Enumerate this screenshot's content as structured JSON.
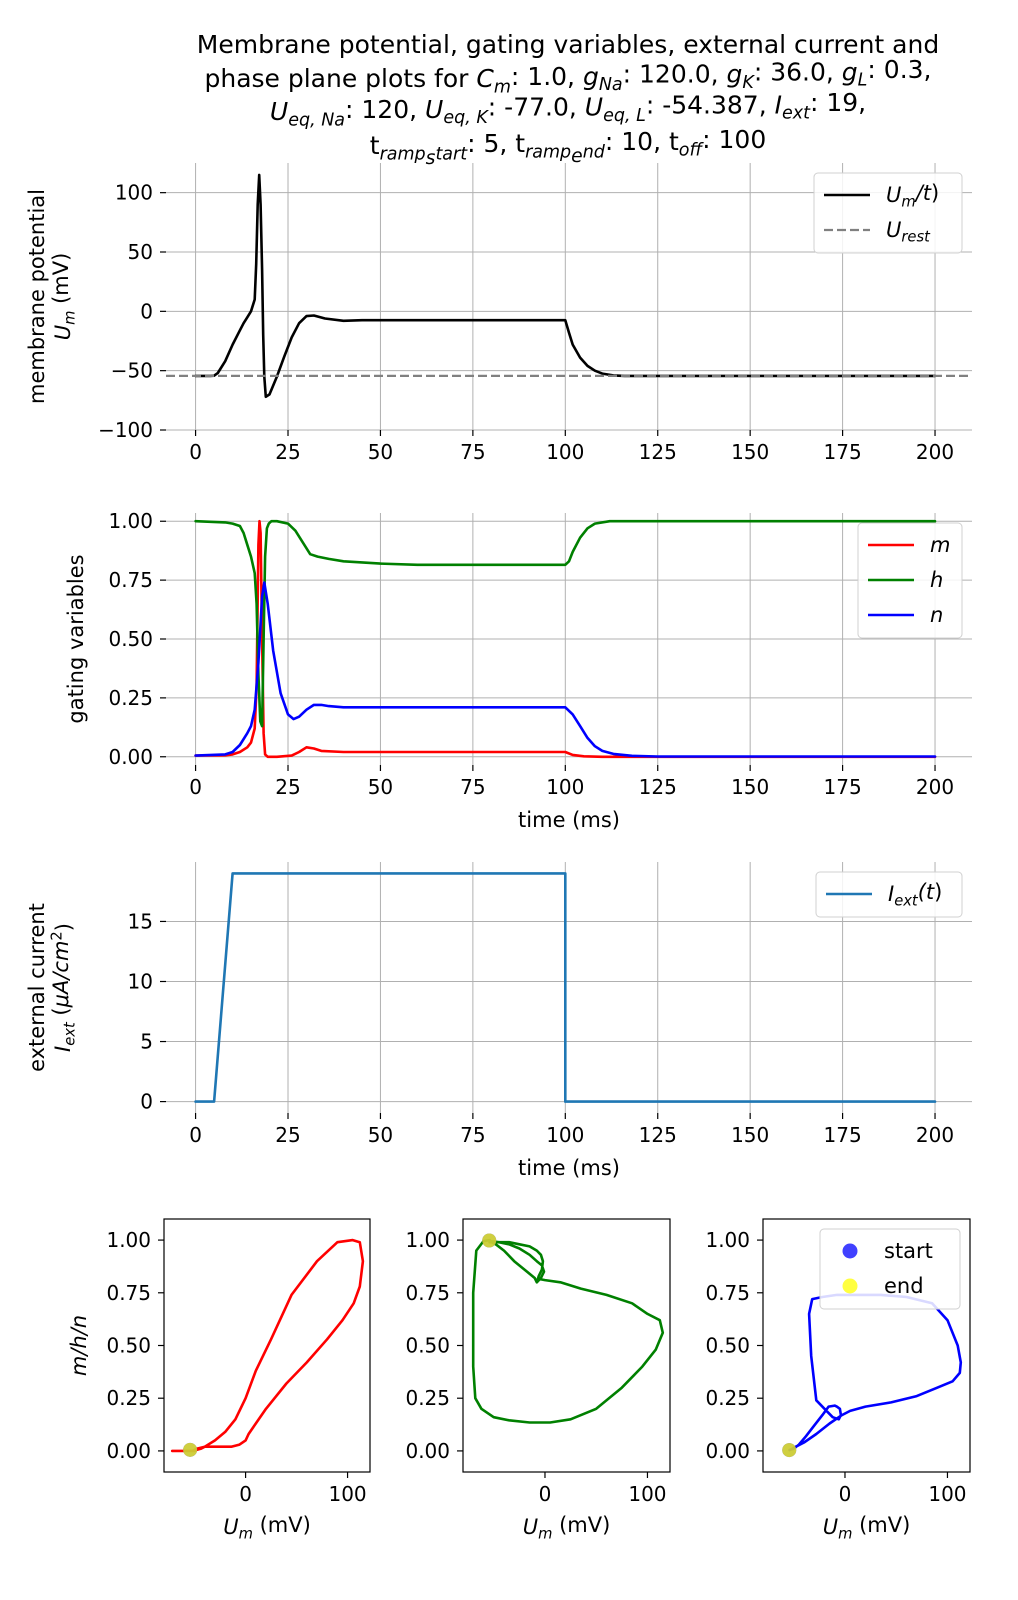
{
  "title_lines": [
    [
      "Membrane potential, gating variables, external current and"
    ],
    [
      "phase plane plots for ",
      {
        "i": "C",
        "sub": "m"
      },
      ": 1.0, ",
      {
        "i": "g",
        "sub": "Na"
      },
      ": 120.0, ",
      {
        "i": "g",
        "sub": "K"
      },
      ": 36.0, ",
      {
        "i": "g",
        "sub": "L"
      },
      ": 0.3,"
    ],
    [
      {
        "i": "U",
        "sub": "eq, Na"
      },
      ": 120, ",
      {
        "i": "U",
        "sub": "eq, K"
      },
      ": -77.0, ",
      {
        "i": "U",
        "sub": "eq, L"
      },
      ": -54.387, ",
      {
        "i": "I",
        "sub": "ext"
      },
      ": 19,"
    ],
    [
      {
        "t": "t",
        "sub": "ramp",
        "subsub": "s",
        "subtail": "tart"
      },
      ": 5, ",
      {
        "t": "t",
        "sub": "ramp",
        "subsub": "e",
        "subtail": "nd"
      },
      ": 10, t",
      {
        "i": "",
        "sub": "off"
      },
      ": 100"
    ]
  ],
  "colors": {
    "membrane": "#000000",
    "rest": "#808080",
    "m": "#ff0000",
    "h": "#008000",
    "n": "#0000ff",
    "current": "#1f77b4",
    "start": "#0000ff",
    "end": "#ffff00",
    "grid": "#b0b0b0"
  },
  "chart_data": [
    {
      "type": "line",
      "id": "membrane",
      "xlabel": "",
      "ylabel_lines": [
        "membrane potential",
        [
          {
            "i": "U",
            "sub": "m"
          },
          " (mV)"
        ]
      ],
      "xlim": [
        -8,
        210
      ],
      "ylim": [
        -100,
        125
      ],
      "xticks": [
        0,
        25,
        50,
        75,
        100,
        125,
        150,
        175,
        200
      ],
      "yticks": [
        -100,
        -50,
        0,
        50,
        100
      ],
      "ytick_labels": [
        "−100",
        "−50",
        "0",
        "50",
        "100"
      ],
      "grid": true,
      "legend": {
        "placement": "top-right",
        "entries": [
          {
            "label": [
              {
                "i": "U",
                "sub": "m"
              },
              {
                "i": "/t"
              },
              ")"
            ],
            "label_text": "U_m/t)",
            "style": "solid",
            "color": "#000000"
          },
          {
            "label": [
              {
                "i": "U",
                "sub": "rest"
              }
            ],
            "label_text": "U_rest",
            "style": "dashed",
            "color": "#808080"
          }
        ]
      },
      "series": [
        {
          "name": "U_m/t)",
          "color": "#000000",
          "style": "solid",
          "x": [
            0,
            4,
            5,
            6,
            8,
            10,
            12,
            13,
            14,
            15,
            16,
            16.4,
            16.8,
            17.2,
            17.6,
            18,
            18.3,
            18.6,
            19,
            20,
            22,
            24,
            26,
            28,
            30,
            32,
            35,
            40,
            45,
            50,
            60,
            70,
            80,
            90,
            99,
            100,
            101,
            102,
            104,
            106,
            108,
            110,
            113,
            116,
            120,
            130,
            140,
            150,
            160,
            170,
            180,
            190,
            200
          ],
          "y": [
            -54.4,
            -54.4,
            -54.2,
            -52,
            -42,
            -28,
            -16,
            -10,
            -5,
            0,
            10,
            40,
            90,
            115,
            90,
            35,
            -20,
            -55,
            -72,
            -70,
            -55,
            -38,
            -22,
            -10,
            -4,
            -3.5,
            -6,
            -8,
            -7.5,
            -7.5,
            -7.5,
            -7.5,
            -7.5,
            -7.5,
            -7.5,
            -7.5,
            -18,
            -28,
            -39,
            -46,
            -50,
            -52.5,
            -54,
            -54.4,
            -54.4,
            -54.4,
            -54.4,
            -54.4,
            -54.4,
            -54.4,
            -54.4,
            -54.4,
            -54.4
          ]
        },
        {
          "name": "U_rest",
          "color": "#808080",
          "style": "dashed",
          "x": [
            -8,
            210
          ],
          "y": [
            -54.4,
            -54.4
          ]
        }
      ]
    },
    {
      "type": "line",
      "id": "gating",
      "xlabel": "time (ms)",
      "ylabel_lines": [
        "gating variables"
      ],
      "xlim": [
        -8,
        210
      ],
      "ylim": [
        -0.035,
        1.035
      ],
      "xticks": [
        0,
        25,
        50,
        75,
        100,
        125,
        150,
        175,
        200
      ],
      "yticks": [
        0,
        0.25,
        0.5,
        0.75,
        1.0
      ],
      "ytick_labels": [
        "0.00",
        "0.25",
        "0.50",
        "0.75",
        "1.00"
      ],
      "grid": true,
      "legend": {
        "placement": "top-right",
        "entries": [
          {
            "label": [
              {
                "i": "m"
              }
            ],
            "label_text": "m",
            "style": "solid",
            "color": "#ff0000"
          },
          {
            "label": [
              {
                "i": "h"
              }
            ],
            "label_text": "h",
            "style": "solid",
            "color": "#008000"
          },
          {
            "label": [
              {
                "i": "n"
              }
            ],
            "label_text": "n",
            "style": "solid",
            "color": "#0000ff"
          }
        ]
      },
      "series": [
        {
          "name": "m",
          "color": "#ff0000",
          "style": "solid",
          "x": [
            0,
            8,
            10,
            12,
            14,
            15,
            16,
            16.5,
            17,
            17.3,
            17.6,
            18,
            18.4,
            18.8,
            19.5,
            22,
            26,
            28,
            30,
            32,
            34,
            40,
            60,
            99,
            100,
            102,
            105,
            110,
            130,
            200
          ],
          "y": [
            0.005,
            0.006,
            0.01,
            0.02,
            0.04,
            0.06,
            0.12,
            0.3,
            0.9,
            1.0,
            0.95,
            0.5,
            0.1,
            0.01,
            0.0,
            0.0,
            0.005,
            0.02,
            0.04,
            0.035,
            0.025,
            0.02,
            0.02,
            0.02,
            0.02,
            0.008,
            0.002,
            0.0,
            0.0,
            0.0
          ]
        },
        {
          "name": "h",
          "color": "#008000",
          "style": "solid",
          "x": [
            0,
            8,
            10,
            12,
            13,
            14,
            15,
            16,
            16.5,
            17,
            17.5,
            18,
            18.4,
            18.8,
            19.3,
            19.8,
            20.5,
            22,
            25,
            27,
            29,
            31,
            33,
            36,
            40,
            50,
            60,
            80,
            99,
            100,
            101,
            102,
            104,
            106,
            108,
            112,
            120,
            200
          ],
          "y": [
            1.0,
            0.995,
            0.99,
            0.98,
            0.95,
            0.9,
            0.85,
            0.78,
            0.65,
            0.35,
            0.15,
            0.13,
            0.5,
            0.85,
            0.97,
            0.99,
            1.0,
            1.0,
            0.99,
            0.96,
            0.91,
            0.86,
            0.85,
            0.84,
            0.83,
            0.82,
            0.815,
            0.815,
            0.815,
            0.815,
            0.83,
            0.87,
            0.93,
            0.97,
            0.99,
            1.0,
            1.0,
            1.0
          ]
        },
        {
          "name": "n",
          "color": "#0000ff",
          "style": "solid",
          "x": [
            0,
            8,
            10,
            12,
            14,
            15,
            16,
            17,
            18,
            18.6,
            19.5,
            21,
            23,
            25,
            26.5,
            28,
            30,
            32,
            34,
            36,
            40,
            50,
            60,
            80,
            99,
            100,
            102,
            104,
            106,
            108,
            110,
            113,
            118,
            125,
            200
          ],
          "y": [
            0.005,
            0.01,
            0.02,
            0.05,
            0.1,
            0.13,
            0.2,
            0.4,
            0.68,
            0.74,
            0.65,
            0.45,
            0.27,
            0.18,
            0.16,
            0.17,
            0.2,
            0.22,
            0.22,
            0.215,
            0.21,
            0.21,
            0.21,
            0.21,
            0.21,
            0.21,
            0.18,
            0.13,
            0.08,
            0.045,
            0.025,
            0.012,
            0.004,
            0.001,
            0.001
          ]
        }
      ]
    },
    {
      "type": "line",
      "id": "current",
      "xlabel": "time (ms)",
      "ylabel_lines": [
        "external current",
        [
          {
            "i": "I",
            "sub": "ext"
          },
          " (",
          {
            "i": "μA/cm"
          },
          {
            "sup": "2"
          },
          ")"
        ]
      ],
      "xlim": [
        -8,
        210
      ],
      "ylim": [
        -0.95,
        19.95
      ],
      "xticks": [
        0,
        25,
        50,
        75,
        100,
        125,
        150,
        175,
        200
      ],
      "yticks": [
        0,
        5,
        10,
        15
      ],
      "ytick_labels": [
        "0",
        "5",
        "10",
        "15"
      ],
      "grid": true,
      "legend": {
        "placement": "top-right",
        "entries": [
          {
            "label": [
              {
                "i": "I",
                "sub": "ext"
              },
              {
                "i": "(t"
              },
              ")"
            ],
            "label_text": "I_ext(t)",
            "style": "solid",
            "color": "#1f77b4"
          }
        ]
      },
      "series": [
        {
          "name": "I_ext(t)",
          "color": "#1f77b4",
          "style": "solid",
          "x": [
            0,
            5,
            10,
            100,
            100,
            200
          ],
          "y": [
            0,
            0,
            19,
            19,
            0,
            0
          ]
        }
      ]
    },
    {
      "type": "line",
      "id": "phase-m",
      "xlabel": "U_m (mV)",
      "ylabel_lines": [
        [
          {
            "i": "m/h/n"
          }
        ]
      ],
      "xlim": [
        -80,
        122
      ],
      "ylim": [
        -0.1,
        1.1
      ],
      "xticks": [
        0,
        100
      ],
      "yticks": [
        0,
        0.25,
        0.5,
        0.75,
        1.0
      ],
      "ytick_labels": [
        "0.00",
        "0.25",
        "0.50",
        "0.75",
        "1.00"
      ],
      "grid": false,
      "series": [
        {
          "name": "m",
          "color": "#ff0000",
          "style": "solid",
          "x": [
            -72,
            -54,
            -52,
            -48,
            -40,
            -30,
            -20,
            -10,
            0,
            10,
            25,
            45,
            70,
            90,
            105,
            112,
            115,
            112,
            106,
            95,
            80,
            60,
            40,
            20,
            10,
            3,
            0,
            -6,
            -14,
            -22,
            -32,
            -40,
            -44,
            -48,
            -50,
            -52,
            -54,
            -60,
            -72
          ],
          "y": [
            0.0,
            0.0,
            0.0,
            0.01,
            0.02,
            0.05,
            0.09,
            0.15,
            0.25,
            0.38,
            0.53,
            0.74,
            0.9,
            0.99,
            1.0,
            0.99,
            0.9,
            0.78,
            0.7,
            0.62,
            0.53,
            0.42,
            0.32,
            0.2,
            0.13,
            0.08,
            0.05,
            0.03,
            0.02,
            0.02,
            0.02,
            0.02,
            0.01,
            0.005,
            0.0,
            0.0,
            0.0,
            0.0,
            0.0
          ]
        }
      ],
      "start": [
        -54.4,
        0.005
      ],
      "end": [
        -54.4,
        0.005
      ]
    },
    {
      "type": "line",
      "id": "phase-h",
      "xlabel": "U_m (mV)",
      "ylabel_lines": [],
      "xlim": [
        -80,
        122
      ],
      "ylim": [
        -0.1,
        1.1
      ],
      "xticks": [
        0,
        100
      ],
      "yticks": [
        0,
        0.25,
        0.5,
        0.75,
        1.0
      ],
      "ytick_labels": [
        "0.00",
        "0.25",
        "0.50",
        "0.75",
        "1.00"
      ],
      "grid": false,
      "series": [
        {
          "name": "h",
          "color": "#008000",
          "style": "solid",
          "x": [
            -54,
            -45,
            -35,
            -25,
            -15,
            -8,
            -3,
            -1,
            -4,
            -8,
            -10,
            -20,
            -30,
            -40,
            -48,
            -54,
            -54,
            -60,
            -67,
            -70,
            -70,
            -68,
            -62,
            -50,
            -35,
            -15,
            5,
            25,
            50,
            75,
            95,
            108,
            115,
            112,
            100,
            85,
            60,
            35,
            15,
            0,
            -5,
            -7,
            -6,
            -3,
            -2,
            -4,
            -8,
            -15,
            -25,
            -35,
            -45,
            -54
          ],
          "y": [
            0.99,
            0.99,
            0.98,
            0.96,
            0.93,
            0.9,
            0.88,
            0.85,
            0.82,
            0.8,
            0.82,
            0.86,
            0.9,
            0.95,
            0.98,
            0.995,
            1.0,
            0.995,
            0.95,
            0.75,
            0.4,
            0.25,
            0.2,
            0.16,
            0.145,
            0.135,
            0.135,
            0.15,
            0.2,
            0.3,
            0.4,
            0.48,
            0.56,
            0.62,
            0.65,
            0.7,
            0.74,
            0.77,
            0.8,
            0.81,
            0.815,
            0.815,
            0.83,
            0.86,
            0.9,
            0.93,
            0.95,
            0.97,
            0.98,
            0.99,
            0.99,
            0.995
          ]
        }
      ],
      "start": [
        -54.4,
        0.998
      ],
      "end": [
        -54.4,
        0.998
      ]
    },
    {
      "type": "line",
      "id": "phase-n",
      "xlabel": "U_m (mV)",
      "ylabel_lines": [],
      "xlim": [
        -80,
        122
      ],
      "ylim": [
        -0.1,
        1.1
      ],
      "xticks": [
        0,
        100
      ],
      "yticks": [
        0,
        0.25,
        0.5,
        0.75,
        1.0
      ],
      "ytick_labels": [
        "0.00",
        "0.25",
        "0.50",
        "0.75",
        "1.00"
      ],
      "grid": false,
      "legend": {
        "placement": "top-right",
        "entries": [
          {
            "label": [
              "start"
            ],
            "label_text": "start",
            "style": "marker",
            "color": "#0000ff"
          },
          {
            "label": [
              "end"
            ],
            "label_text": "end",
            "style": "marker",
            "color": "#ffff00"
          }
        ]
      },
      "series": [
        {
          "name": "n",
          "color": "#0000ff",
          "style": "solid",
          "x": [
            -54,
            -50,
            -45,
            -38,
            -30,
            -22,
            -16,
            -10,
            -8,
            -5,
            -4,
            -6,
            -12,
            -20,
            -28,
            -33,
            -35,
            -32,
            -22,
            -8,
            10,
            35,
            60,
            85,
            100,
            110,
            113,
            112,
            105,
            90,
            70,
            45,
            20,
            5,
            -3,
            -15,
            -28,
            -40,
            -48,
            -52,
            -54
          ],
          "y": [
            0.005,
            0.01,
            0.03,
            0.07,
            0.12,
            0.17,
            0.21,
            0.215,
            0.21,
            0.2,
            0.17,
            0.15,
            0.16,
            0.2,
            0.24,
            0.45,
            0.65,
            0.72,
            0.73,
            0.74,
            0.74,
            0.74,
            0.73,
            0.7,
            0.62,
            0.5,
            0.42,
            0.37,
            0.33,
            0.3,
            0.26,
            0.23,
            0.21,
            0.19,
            0.17,
            0.13,
            0.08,
            0.04,
            0.02,
            0.008,
            0.004
          ]
        }
      ],
      "start": [
        -54.4,
        0.004
      ],
      "end": [
        -54.4,
        0.004
      ]
    }
  ]
}
